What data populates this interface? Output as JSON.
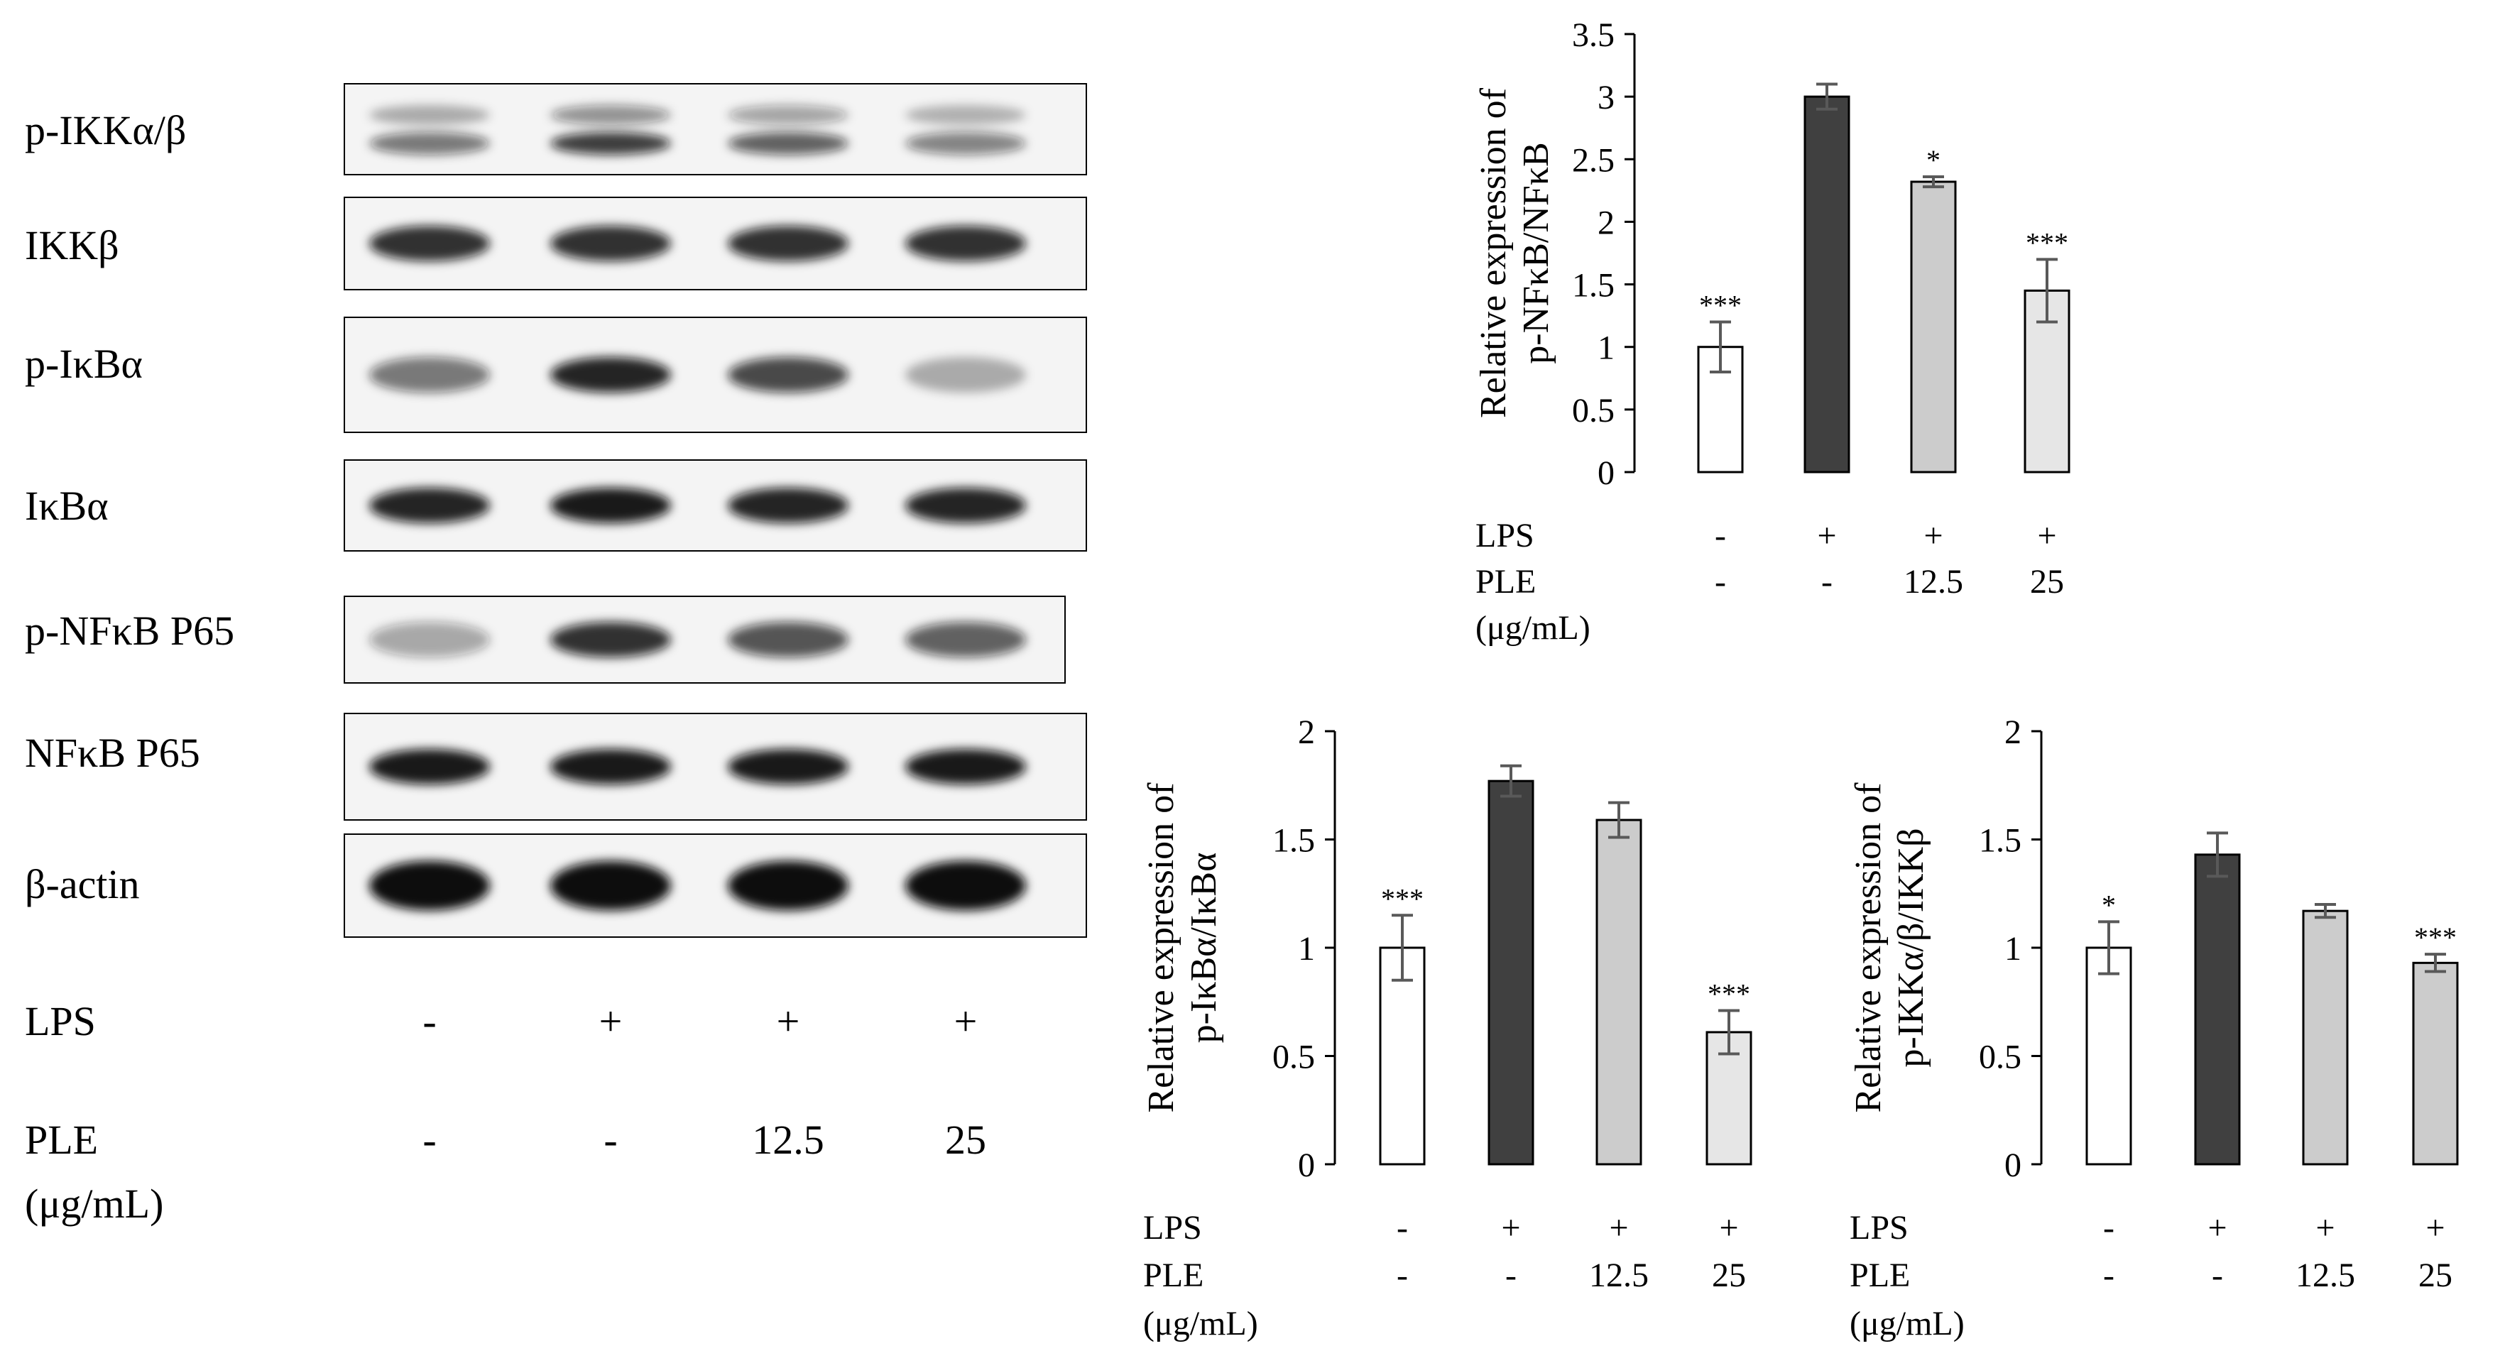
{
  "blot": {
    "row_labels": [
      "p-IKKα/β",
      "IKKβ",
      "p-IκBα",
      "IκBα",
      "p-NFκB P65",
      "NFκB P65",
      "β-actin"
    ],
    "band_intensity": [
      [
        0.55,
        0.8,
        0.65,
        0.5
      ],
      [
        0.85,
        0.85,
        0.85,
        0.85
      ],
      [
        0.55,
        0.9,
        0.75,
        0.3
      ],
      [
        0.9,
        0.95,
        0.9,
        0.9
      ],
      [
        0.35,
        0.85,
        0.7,
        0.65
      ],
      [
        0.95,
        0.95,
        0.95,
        0.95
      ],
      [
        1.0,
        1.0,
        1.0,
        1.0
      ]
    ],
    "band_color": "#111111",
    "treatment_row_labels": [
      "LPS",
      "PLE"
    ],
    "unit_label": "(μg/mL)",
    "lps": [
      "-",
      "+",
      "+",
      "+"
    ],
    "ple": [
      "-",
      "-",
      "12.5",
      "25"
    ]
  },
  "chart_data": [
    {
      "type": "bar",
      "ylabel": [
        "Relative expression of",
        "p-NFκB/NFκB"
      ],
      "categories": [
        "-/-",
        "+/-",
        "+/12.5",
        "+/25"
      ],
      "values": [
        1.0,
        3.0,
        2.32,
        1.45
      ],
      "errors": [
        0.2,
        0.1,
        0.04,
        0.25
      ],
      "significance": [
        "***",
        "",
        "*",
        "***"
      ],
      "ylim": [
        0,
        3.5
      ],
      "ytick_labels": [
        "0",
        "0.5",
        "1",
        "1.5",
        "2",
        "2.5",
        "3",
        "3.5"
      ],
      "bar_colors": [
        "#ffffff",
        "#404040",
        "#cccccc",
        "#e6e6e6"
      ],
      "treatment_row_labels": [
        "LPS",
        "PLE"
      ],
      "unit_label": "(μg/mL)",
      "lps": [
        "-",
        "+",
        "+",
        "+"
      ],
      "ple": [
        "-",
        "-",
        "12.5",
        "25"
      ]
    },
    {
      "type": "bar",
      "ylabel": [
        "Relative expression of",
        "p-IκBα/IκBα"
      ],
      "categories": [
        "-/-",
        "+/-",
        "+/12.5",
        "+/25"
      ],
      "values": [
        1.0,
        1.77,
        1.59,
        0.61
      ],
      "errors": [
        0.15,
        0.07,
        0.08,
        0.1
      ],
      "significance": [
        "***",
        "",
        "",
        "***"
      ],
      "ylim": [
        0,
        2
      ],
      "ytick_labels": [
        "0",
        "0.5",
        "1",
        "1.5",
        "2"
      ],
      "bar_colors": [
        "#ffffff",
        "#404040",
        "#cccccc",
        "#e6e6e6"
      ],
      "treatment_row_labels": [
        "LPS",
        "PLE"
      ],
      "unit_label": "(μg/mL)",
      "lps": [
        "-",
        "+",
        "+",
        "+"
      ],
      "ple": [
        "-",
        "-",
        "12.5",
        "25"
      ]
    },
    {
      "type": "bar",
      "ylabel": [
        "Relative expression of",
        "p-IKKα/β/IKKβ"
      ],
      "categories": [
        "-/-",
        "+/-",
        "+/12.5",
        "+/25"
      ],
      "values": [
        1.0,
        1.43,
        1.17,
        0.93
      ],
      "errors": [
        0.12,
        0.1,
        0.03,
        0.04
      ],
      "significance": [
        "*",
        "",
        "",
        "***"
      ],
      "ylim": [
        0,
        2
      ],
      "ytick_labels": [
        "0",
        "0.5",
        "1",
        "1.5",
        "2"
      ],
      "bar_colors": [
        "#ffffff",
        "#404040",
        "#cccccc",
        "#cccccc"
      ],
      "treatment_row_labels": [
        "LPS",
        "PLE"
      ],
      "unit_label": "(μg/mL)",
      "lps": [
        "-",
        "+",
        "+",
        "+"
      ],
      "ple": [
        "-",
        "-",
        "12.5",
        "25"
      ]
    }
  ]
}
